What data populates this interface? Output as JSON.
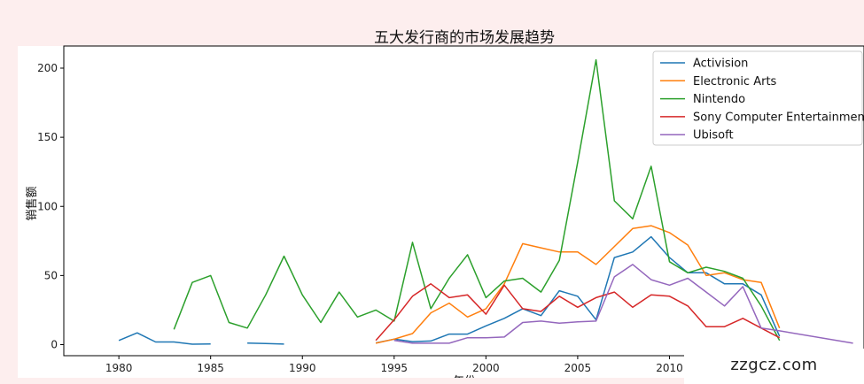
{
  "chart_data": {
    "type": "line",
    "title": "五大发行商的市场发展趋势",
    "xlabel": "年份",
    "ylabel": "销售额",
    "xlim": [
      1977,
      2020.6
    ],
    "ylim": [
      -8,
      216
    ],
    "xticks": [
      1980,
      1985,
      1990,
      1995,
      2000,
      2005,
      2010
    ],
    "yticks": [
      0,
      50,
      100,
      150,
      200
    ],
    "grid": false,
    "legend_position": "top-right",
    "series": [
      {
        "name": "Activision",
        "color": "#1f77b4",
        "points": [
          [
            1980,
            3
          ],
          [
            1981,
            8.5
          ],
          [
            1982,
            1.9
          ],
          [
            1983,
            1.9
          ],
          [
            1984,
            0.3
          ],
          [
            1985,
            0.5
          ],
          [
            null,
            null
          ],
          [
            1987,
            1.1
          ],
          [
            1988,
            0.8
          ],
          [
            1989,
            0.4
          ],
          [
            null,
            null
          ],
          [
            1994,
            1.2
          ],
          [
            1995,
            4
          ],
          [
            1996,
            2.2
          ],
          [
            1997,
            2.6
          ],
          [
            1998,
            7.6
          ],
          [
            1999,
            7.6
          ],
          [
            2000,
            13.6
          ],
          [
            2001,
            19
          ],
          [
            2002,
            26
          ],
          [
            2003,
            21
          ],
          [
            2004,
            39
          ],
          [
            2005,
            35
          ],
          [
            2006,
            18
          ],
          [
            2007,
            63
          ],
          [
            2008,
            67
          ],
          [
            2009,
            78
          ],
          [
            2010,
            63
          ],
          [
            2011,
            52
          ],
          [
            2012,
            52
          ],
          [
            2013,
            44
          ],
          [
            2014,
            44
          ],
          [
            2015,
            36
          ],
          [
            2016,
            6
          ]
        ]
      },
      {
        "name": "Electronic Arts",
        "color": "#ff7f0e",
        "points": [
          [
            1994,
            1
          ],
          [
            1995,
            4
          ],
          [
            1996,
            8
          ],
          [
            1997,
            23
          ],
          [
            1998,
            30
          ],
          [
            1999,
            20
          ],
          [
            2000,
            26
          ],
          [
            2001,
            44
          ],
          [
            2002,
            73
          ],
          [
            2003,
            70
          ],
          [
            2004,
            67
          ],
          [
            2005,
            67
          ],
          [
            2006,
            58
          ],
          [
            2007,
            71
          ],
          [
            2008,
            84
          ],
          [
            2009,
            86
          ],
          [
            2010,
            81
          ],
          [
            2011,
            72
          ],
          [
            2012,
            50
          ],
          [
            2013,
            52
          ],
          [
            2014,
            47
          ],
          [
            2015,
            45
          ],
          [
            2016,
            12
          ]
        ]
      },
      {
        "name": "Nintendo",
        "color": "#2ca02c",
        "points": [
          [
            1983,
            11
          ],
          [
            1984,
            45
          ],
          [
            1985,
            50
          ],
          [
            1986,
            16
          ],
          [
            1987,
            12
          ],
          [
            1988,
            36
          ],
          [
            1989,
            64
          ],
          [
            1990,
            36
          ],
          [
            1991,
            16
          ],
          [
            1992,
            38
          ],
          [
            1993,
            20
          ],
          [
            1994,
            25
          ],
          [
            1995,
            17
          ],
          [
            1996,
            74
          ],
          [
            1997,
            26
          ],
          [
            1998,
            48
          ],
          [
            1999,
            65
          ],
          [
            2000,
            34
          ],
          [
            2001,
            46
          ],
          [
            2002,
            48
          ],
          [
            2003,
            38
          ],
          [
            2004,
            61
          ],
          [
            2005,
            132
          ],
          [
            2006,
            206
          ],
          [
            2007,
            104
          ],
          [
            2008,
            91
          ],
          [
            2009,
            129
          ],
          [
            2010,
            60
          ],
          [
            2011,
            52
          ],
          [
            2012,
            56
          ],
          [
            2013,
            53
          ],
          [
            2014,
            48
          ],
          [
            2015,
            28
          ],
          [
            2016,
            3
          ]
        ]
      },
      {
        "name": "Sony Computer Entertainment",
        "color": "#d62728",
        "points": [
          [
            1994,
            3
          ],
          [
            1995,
            18
          ],
          [
            1996,
            35
          ],
          [
            1997,
            44
          ],
          [
            1998,
            34
          ],
          [
            1999,
            36
          ],
          [
            2000,
            22
          ],
          [
            2001,
            43
          ],
          [
            2002,
            26
          ],
          [
            2003,
            24
          ],
          [
            2004,
            35
          ],
          [
            2005,
            27
          ],
          [
            2006,
            34
          ],
          [
            2007,
            38
          ],
          [
            2008,
            27
          ],
          [
            2009,
            36
          ],
          [
            2010,
            35
          ],
          [
            2011,
            28
          ],
          [
            2012,
            13
          ],
          [
            2013,
            13
          ],
          [
            2014,
            19
          ],
          [
            2015,
            12
          ],
          [
            2016,
            5
          ]
        ]
      },
      {
        "name": "Ubisoft",
        "color": "#9467bd",
        "points": [
          [
            1995,
            3
          ],
          [
            1996,
            1
          ],
          [
            1997,
            1
          ],
          [
            1998,
            1
          ],
          [
            1999,
            5
          ],
          [
            2000,
            5
          ],
          [
            2001,
            5.5
          ],
          [
            2002,
            16
          ],
          [
            2003,
            17
          ],
          [
            2004,
            15.5
          ],
          [
            2005,
            16.5
          ],
          [
            2006,
            17
          ],
          [
            2007,
            49
          ],
          [
            2008,
            58
          ],
          [
            2009,
            47
          ],
          [
            2010,
            43
          ],
          [
            2011,
            48
          ],
          [
            2012,
            38
          ],
          [
            2013,
            28
          ],
          [
            2014,
            42
          ],
          [
            2015,
            12
          ],
          [
            2016,
            10
          ],
          [
            2020,
            1
          ]
        ]
      }
    ]
  },
  "watermark": "zzgcz.com"
}
